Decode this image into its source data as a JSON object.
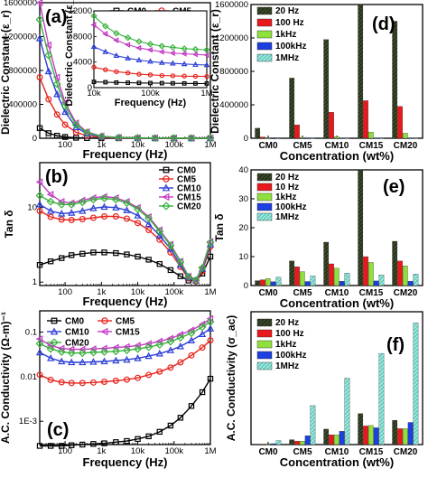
{
  "figure": {
    "panels": [
      "a",
      "b",
      "c",
      "d",
      "e",
      "f"
    ]
  },
  "chart_data": [
    {
      "id": "a",
      "type": "line",
      "panel_label": "(a)",
      "xlabel": "Frequency (Hz)",
      "ylabel": "Dielectric Constant (ε_r)",
      "xscale": "log",
      "xlim": [
        20,
        1000000
      ],
      "ylim": [
        0,
        1600000
      ],
      "xticks": [
        {
          "v": 100,
          "label": "100"
        },
        {
          "v": 1000,
          "label": "1k"
        },
        {
          "v": 10000,
          "label": "10k"
        },
        {
          "v": 100000,
          "label": "100k"
        },
        {
          "v": 1000000,
          "label": "1M"
        }
      ],
      "yticks": [
        {
          "v": 0,
          "label": "0"
        },
        {
          "v": 400000,
          "label": "400000"
        },
        {
          "v": 800000,
          "label": "800000"
        },
        {
          "v": 1200000,
          "label": "1200000"
        },
        {
          "v": 1600000,
          "label": "1600000"
        }
      ],
      "x": [
        20,
        35,
        60,
        100,
        200,
        400,
        1000,
        3000,
        10000,
        30000,
        100000,
        300000,
        1000000
      ],
      "series": [
        {
          "name": "CM0",
          "color": "#000000",
          "marker": "square",
          "values": [
            120000,
            60000,
            30000,
            15000,
            6000,
            2500,
            1000,
            600,
            400,
            300,
            250,
            220,
            200
          ]
        },
        {
          "name": "CM5",
          "color": "#e8231c",
          "marker": "circle",
          "values": [
            720000,
            460000,
            280000,
            160000,
            70000,
            30000,
            10000,
            4000,
            2000,
            1200,
            900,
            700,
            600
          ]
        },
        {
          "name": "CM10",
          "color": "#2c3fd6",
          "marker": "triangle",
          "values": [
            1180000,
            790000,
            520000,
            310000,
            130000,
            55000,
            18000,
            7000,
            3500,
            2200,
            1600,
            1300,
            1100
          ]
        },
        {
          "name": "CM15",
          "color": "#c339c4",
          "marker": "triangle-left",
          "values": [
            1600000,
            1100000,
            720000,
            420000,
            180000,
            75000,
            25000,
            9000,
            4500,
            2800,
            2000,
            1600,
            1400
          ]
        },
        {
          "name": "CM20",
          "color": "#36b23a",
          "marker": "diamond",
          "values": [
            1400000,
            980000,
            640000,
            380000,
            160000,
            68000,
            22000,
            8500,
            4200,
            2600,
            1900,
            1500,
            1300
          ]
        }
      ],
      "legend": {
        "position": "top-right",
        "columns": 2
      },
      "inset": {
        "xlabel": "Frequency (Hz)",
        "ylabel": "Dielectric Constant (ε_r)",
        "xscale": "log",
        "xlim": [
          10000,
          1000000
        ],
        "ylim": [
          0,
          12000
        ],
        "xticks": [
          {
            "v": 10000,
            "label": "10k"
          },
          {
            "v": 100000,
            "label": "100k"
          },
          {
            "v": 1000000,
            "label": "1M"
          }
        ],
        "yticks": [
          {
            "v": 0,
            "label": "0"
          },
          {
            "v": 4000,
            "label": "4000"
          },
          {
            "v": 8000,
            "label": "8000"
          },
          {
            "v": 12000,
            "label": "12000"
          }
        ],
        "x": [
          10000,
          16000,
          25000,
          40000,
          63000,
          100000,
          160000,
          250000,
          400000,
          630000,
          1000000
        ],
        "series": [
          {
            "name": "CM0",
            "color": "#000000",
            "marker": "square",
            "values": [
              900,
              850,
              800,
              770,
              740,
              720,
              700,
              680,
              660,
              650,
              640
            ]
          },
          {
            "name": "CM5",
            "color": "#e8231c",
            "marker": "circle",
            "values": [
              3200,
              2800,
              2500,
              2300,
              2100,
              2000,
              1900,
              1850,
              1800,
              1780,
              1750
            ]
          },
          {
            "name": "CM10",
            "color": "#2c3fd6",
            "marker": "triangle",
            "values": [
              6400,
              5600,
              5000,
              4600,
              4300,
              4100,
              3900,
              3800,
              3700,
              3600,
              3550
            ]
          },
          {
            "name": "CM15",
            "color": "#c339c4",
            "marker": "triangle-left",
            "values": [
              9800,
              8400,
              7400,
              6700,
              6200,
              5900,
              5600,
              5400,
              5300,
              5200,
              5100
            ]
          },
          {
            "name": "CM20",
            "color": "#36b23a",
            "marker": "diamond",
            "values": [
              11200,
              9600,
              8500,
              7800,
              7200,
              6800,
              6500,
              6300,
              6100,
              6000,
              5900
            ]
          }
        ]
      }
    },
    {
      "id": "b",
      "type": "line",
      "panel_label": "(b)",
      "xlabel": "Frequency (Hz)",
      "ylabel": "Tan δ",
      "xscale": "log",
      "yscale": "log",
      "xlim": [
        20,
        1000000
      ],
      "ylim": [
        0.9,
        40
      ],
      "xticks": [
        {
          "v": 100,
          "label": "100"
        },
        {
          "v": 1000,
          "label": "1k"
        },
        {
          "v": 10000,
          "label": "10k"
        },
        {
          "v": 100000,
          "label": "100k"
        },
        {
          "v": 1000000,
          "label": "1M"
        }
      ],
      "yticks": [
        {
          "v": 1,
          "label": "1"
        },
        {
          "v": 10,
          "label": "10"
        }
      ],
      "x": [
        20,
        40,
        80,
        150,
        300,
        600,
        1200,
        2500,
        5000,
        10000,
        20000,
        40000,
        80000,
        150000,
        250000,
        400000,
        600000,
        1000000
      ],
      "series": [
        {
          "name": "CM0",
          "color": "#000000",
          "marker": "square",
          "values": [
            1.7,
            1.9,
            2.1,
            2.3,
            2.4,
            2.5,
            2.5,
            2.45,
            2.35,
            2.2,
            2.0,
            1.75,
            1.45,
            1.2,
            1.05,
            1.05,
            1.3,
            2.2
          ]
        },
        {
          "name": "CM5",
          "color": "#e8231c",
          "marker": "circle",
          "values": [
            9.0,
            7.5,
            6.9,
            6.8,
            7.0,
            7.3,
            7.6,
            7.6,
            7.1,
            6.2,
            5.0,
            3.7,
            2.5,
            1.6,
            1.12,
            1.02,
            1.4,
            3.0
          ]
        },
        {
          "name": "CM10",
          "color": "#2c3fd6",
          "marker": "triangle",
          "values": [
            11.0,
            9.0,
            8.3,
            8.5,
            9.0,
            9.8,
            10.2,
            10.0,
            9.2,
            7.8,
            6.0,
            4.2,
            2.8,
            1.7,
            1.15,
            1.05,
            1.5,
            3.2
          ]
        },
        {
          "name": "CM15",
          "color": "#c339c4",
          "marker": "triangle-left",
          "values": [
            22.0,
            15.0,
            12.0,
            11.5,
            12.5,
            13.5,
            14.0,
            13.5,
            12.0,
            10.0,
            7.5,
            5.0,
            3.2,
            1.9,
            1.2,
            1.08,
            1.6,
            3.5
          ]
        },
        {
          "name": "CM20",
          "color": "#36b23a",
          "marker": "diamond",
          "values": [
            14.5,
            12.0,
            11.0,
            11.0,
            11.8,
            12.8,
            13.3,
            12.8,
            11.5,
            9.5,
            7.2,
            4.8,
            3.1,
            1.85,
            1.18,
            1.06,
            1.55,
            3.4
          ]
        }
      ],
      "legend": {
        "position": "top-right",
        "columns": 1
      }
    },
    {
      "id": "c",
      "type": "line",
      "panel_label": "(c)",
      "xlabel": "Frequency (Hz)",
      "ylabel": "A.C. Conductivity (Ω-m)⁻¹",
      "xscale": "log",
      "yscale": "log",
      "xlim": [
        20,
        1000000
      ],
      "ylim": [
        0.0003,
        0.3
      ],
      "xticks": [
        {
          "v": 100,
          "label": "100"
        },
        {
          "v": 1000,
          "label": "1k"
        },
        {
          "v": 10000,
          "label": "10k"
        },
        {
          "v": 100000,
          "label": "100k"
        },
        {
          "v": 1000000,
          "label": "1M"
        }
      ],
      "yticks": [
        {
          "v": 0.001,
          "label": "1E-3"
        },
        {
          "v": 0.01,
          "label": "0.01"
        },
        {
          "v": 0.1,
          "label": "0.1"
        }
      ],
      "x": [
        20,
        40,
        80,
        150,
        300,
        600,
        1200,
        2500,
        5000,
        10000,
        20000,
        40000,
        80000,
        150000,
        300000,
        600000,
        1000000
      ],
      "series": [
        {
          "name": "CM0",
          "color": "#000000",
          "marker": "square",
          "values": [
            0.00028,
            0.00028,
            0.00028,
            0.00029,
            0.0003,
            0.00031,
            0.00032,
            0.00034,
            0.00036,
            0.0004,
            0.00046,
            0.00058,
            0.0008,
            0.0012,
            0.0022,
            0.0045,
            0.009
          ]
        },
        {
          "name": "CM5",
          "color": "#e8231c",
          "marker": "circle",
          "values": [
            0.011,
            0.0085,
            0.0075,
            0.0072,
            0.0072,
            0.0074,
            0.0077,
            0.0081,
            0.0086,
            0.0094,
            0.011,
            0.013,
            0.016,
            0.021,
            0.03,
            0.045,
            0.065
          ]
        },
        {
          "name": "CM10",
          "color": "#2c3fd6",
          "marker": "triangle",
          "values": [
            0.035,
            0.026,
            0.022,
            0.021,
            0.021,
            0.0215,
            0.022,
            0.023,
            0.024,
            0.026,
            0.029,
            0.033,
            0.039,
            0.048,
            0.065,
            0.09,
            0.12
          ]
        },
        {
          "name": "CM15",
          "color": "#c339c4",
          "marker": "triangle-left",
          "values": [
            0.07,
            0.05,
            0.043,
            0.041,
            0.041,
            0.042,
            0.043,
            0.045,
            0.047,
            0.05,
            0.055,
            0.062,
            0.072,
            0.088,
            0.11,
            0.15,
            0.2
          ]
        },
        {
          "name": "CM20",
          "color": "#36b23a",
          "marker": "diamond",
          "values": [
            0.055,
            0.042,
            0.036,
            0.034,
            0.034,
            0.035,
            0.036,
            0.037,
            0.039,
            0.042,
            0.046,
            0.052,
            0.061,
            0.075,
            0.095,
            0.13,
            0.17
          ]
        }
      ],
      "legend": {
        "position": "top-left",
        "columns": 2
      }
    },
    {
      "id": "d",
      "type": "bar",
      "panel_label": "(d)",
      "xlabel": "Concentration (wt%)",
      "ylabel": "Dielectric Constant (ε_r)",
      "categories": [
        "CM0",
        "CM5",
        "CM10",
        "CM15",
        "CM20"
      ],
      "ylim": [
        0,
        1600000
      ],
      "yticks": [
        {
          "v": 0,
          "label": "0"
        },
        {
          "v": 400000,
          "label": "400000"
        },
        {
          "v": 800000,
          "label": "800000"
        },
        {
          "v": 1200000,
          "label": "1200000"
        },
        {
          "v": 1600000,
          "label": "1600000"
        }
      ],
      "series": [
        {
          "name": "20 Hz",
          "color": "#2f3a22",
          "pattern": "hatch-dark",
          "values": [
            120000,
            720000,
            1180000,
            1600000,
            1400000
          ]
        },
        {
          "name": "100 Hz",
          "color": "#e8191b",
          "pattern": "solid",
          "values": [
            15000,
            160000,
            310000,
            450000,
            380000
          ]
        },
        {
          "name": "1kHz",
          "color": "#8fe03c",
          "pattern": "solid",
          "values": [
            1000,
            10000,
            18000,
            75000,
            60000
          ]
        },
        {
          "name": "100kHz",
          "color": "#1d3fe0",
          "pattern": "solid",
          "values": [
            300,
            1200,
            2000,
            2800,
            2500
          ]
        },
        {
          "name": "1MHz",
          "color": "#4fc9bb",
          "pattern": "hatch-cyan",
          "values": [
            200,
            700,
            1100,
            1400,
            1300
          ]
        }
      ],
      "legend": {
        "position": "top-left",
        "columns": 1
      }
    },
    {
      "id": "e",
      "type": "bar",
      "panel_label": "(e)",
      "xlabel": "Concentration (wt%)",
      "ylabel": "Tan δ",
      "categories": [
        "CM0",
        "CM5",
        "CM10",
        "CM15",
        "CM20"
      ],
      "ylim": [
        0,
        40
      ],
      "yticks": [
        {
          "v": 0,
          "label": "0"
        },
        {
          "v": 10,
          "label": "10"
        },
        {
          "v": 20,
          "label": "20"
        },
        {
          "v": 30,
          "label": "30"
        },
        {
          "v": 40,
          "label": "40"
        }
      ],
      "series": [
        {
          "name": "20 Hz",
          "color": "#2f3a22",
          "pattern": "hatch-dark",
          "values": [
            1.7,
            8.5,
            15.0,
            40.0,
            15.3
          ]
        },
        {
          "name": "10 Hz",
          "color": "#e8191b",
          "pattern": "solid",
          "values": [
            2.0,
            6.5,
            7.5,
            10.0,
            8.5
          ]
        },
        {
          "name": "1kHz",
          "color": "#8fe03c",
          "pattern": "solid",
          "values": [
            2.4,
            4.8,
            6.0,
            8.0,
            6.8
          ]
        },
        {
          "name": "100kHz",
          "color": "#1d3fe0",
          "pattern": "solid",
          "values": [
            1.3,
            1.4,
            1.5,
            1.6,
            1.5
          ]
        },
        {
          "name": "1MHz",
          "color": "#4fc9bb",
          "pattern": "hatch-cyan",
          "values": [
            2.9,
            3.3,
            4.3,
            3.7,
            4.0
          ]
        }
      ],
      "legend": {
        "position": "top-left",
        "columns": 1
      }
    },
    {
      "id": "f",
      "type": "bar",
      "panel_label": "(f)",
      "xlabel": "Concentration (wt%)",
      "ylabel": "A.C. Conductivity (σ_ac)",
      "categories": [
        "CM0",
        "CM5",
        "CM10",
        "CM15",
        "CM20"
      ],
      "ylim": [
        0,
        0.3
      ],
      "yticks": [],
      "series": [
        {
          "name": "20 Hz",
          "color": "#2f3a22",
          "pattern": "hatch-dark",
          "values": [
            0.0003,
            0.011,
            0.035,
            0.07,
            0.055
          ]
        },
        {
          "name": "100 Hz",
          "color": "#e8191b",
          "pattern": "solid",
          "values": [
            0.0003,
            0.008,
            0.022,
            0.042,
            0.036
          ]
        },
        {
          "name": "1kHz",
          "color": "#8fe03c",
          "pattern": "solid",
          "values": [
            0.0003,
            0.0077,
            0.022,
            0.043,
            0.036
          ]
        },
        {
          "name": "100kHz",
          "color": "#1d3fe0",
          "pattern": "solid",
          "values": [
            0.002,
            0.02,
            0.03,
            0.038,
            0.05
          ]
        },
        {
          "name": "1MHz",
          "color": "#4fc9bb",
          "pattern": "hatch-cyan",
          "values": [
            0.009,
            0.088,
            0.15,
            0.206,
            0.275
          ]
        }
      ],
      "legend": {
        "position": "top-left",
        "columns": 1
      }
    }
  ]
}
